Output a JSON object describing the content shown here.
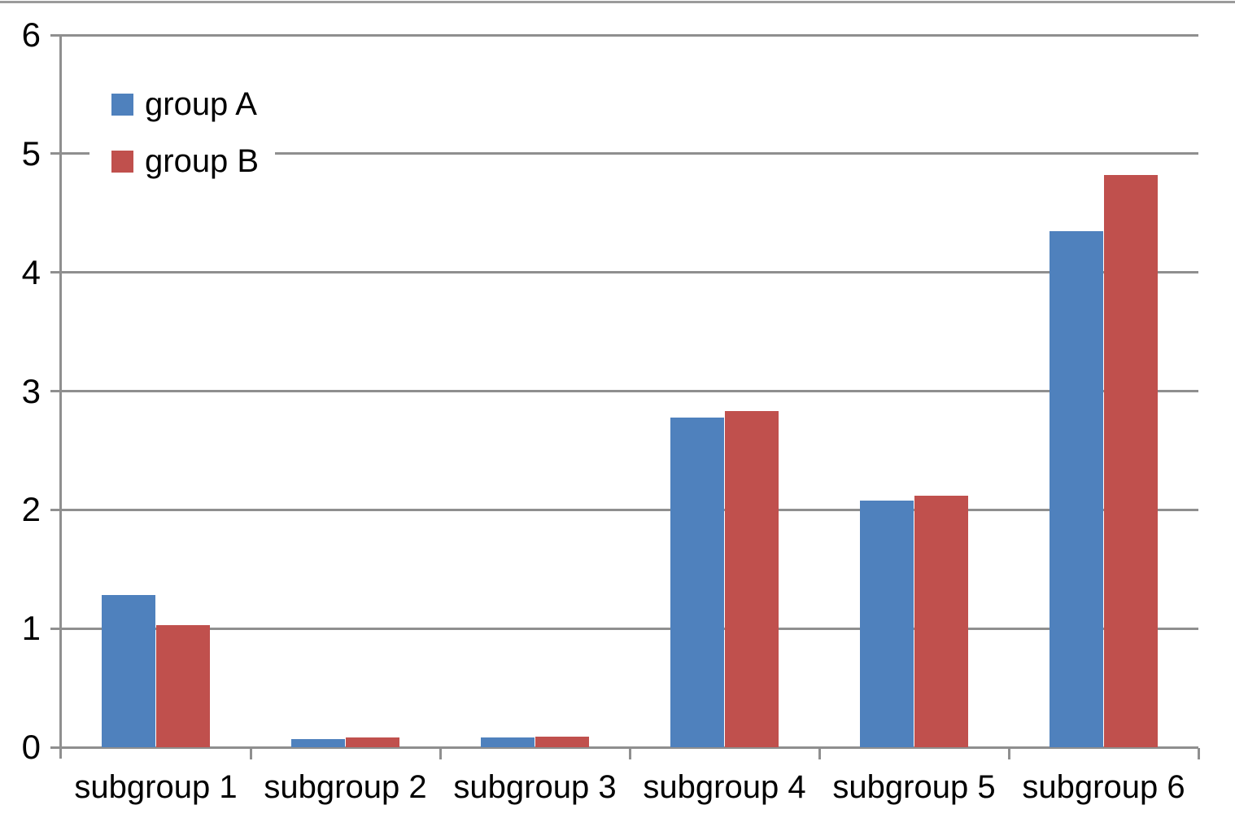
{
  "chart_data": {
    "type": "bar",
    "title": "",
    "xlabel": "",
    "ylabel": "",
    "categories": [
      "subgroup 1",
      "subgroup 2",
      "subgroup 3",
      "subgroup 4",
      "subgroup 5",
      "subgroup 6"
    ],
    "series": [
      {
        "name": "group A",
        "color": "#4f81bd",
        "values": [
          1.28,
          0.07,
          0.08,
          2.78,
          2.08,
          4.35
        ]
      },
      {
        "name": "group B",
        "color": "#c0504d",
        "values": [
          1.03,
          0.08,
          0.09,
          2.83,
          2.12,
          4.82
        ]
      }
    ],
    "ylim": [
      0,
      6
    ],
    "y_ticks": [
      0,
      1,
      2,
      3,
      4,
      5,
      6
    ],
    "grid": true,
    "gridline_color": "#8f8f8f",
    "axis_color": "#8f8f8f",
    "legend_position": "top-left",
    "legend_background": "#ffffff"
  }
}
